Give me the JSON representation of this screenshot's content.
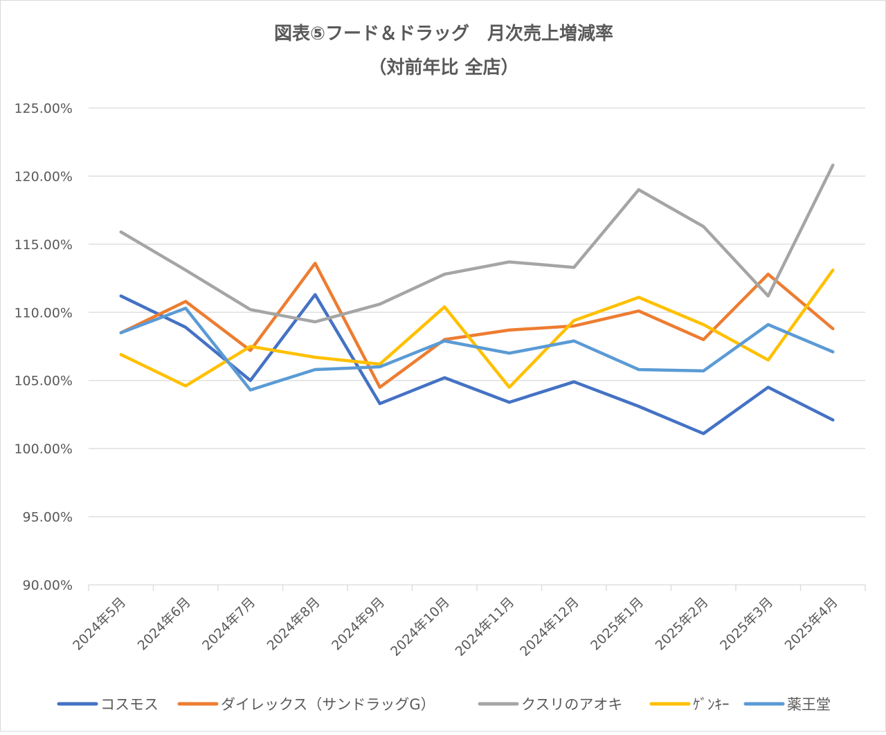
{
  "chart_data": {
    "type": "line",
    "title": "図表⑤フード＆ドラッグ　月次売上増減率",
    "subtitle": "（対前年比 全店）",
    "xlabel": "",
    "ylabel": "",
    "ylim": [
      90,
      125
    ],
    "yticks": [
      "90.00%",
      "95.00%",
      "100.00%",
      "105.00%",
      "110.00%",
      "115.00%",
      "120.00%",
      "125.00%"
    ],
    "grid": true,
    "legend_position": "bottom",
    "categories": [
      "2024年5月",
      "2024年6月",
      "2024年7月",
      "2024年8月",
      "2024年9月",
      "2024年10月",
      "2024年11月",
      "2024年12月",
      "2025年1月",
      "2025年2月",
      "2025年3月",
      "2025年4月"
    ],
    "series": [
      {
        "name": "コスモス",
        "color": "#4472C4",
        "values": [
          111.2,
          108.9,
          105.0,
          111.3,
          103.3,
          105.2,
          103.4,
          104.9,
          103.1,
          101.1,
          104.5,
          102.1
        ]
      },
      {
        "name": "ダイレックス（サンドラッグG）",
        "color": "#ED7D31",
        "values": [
          108.5,
          110.8,
          107.2,
          113.6,
          104.5,
          108.0,
          108.7,
          109.0,
          110.1,
          108.0,
          112.8,
          108.8
        ]
      },
      {
        "name": "クスリのアオキ",
        "color": "#A5A5A5",
        "values": [
          115.9,
          113.1,
          110.2,
          109.3,
          110.6,
          112.8,
          113.7,
          113.3,
          119.0,
          116.3,
          111.2,
          120.8
        ]
      },
      {
        "name": "ｹﾞﾝｷｰ",
        "color": "#FFC000",
        "values": [
          106.9,
          104.6,
          107.5,
          106.7,
          106.2,
          110.4,
          104.5,
          109.4,
          111.1,
          109.1,
          106.5,
          113.1
        ]
      },
      {
        "name": "薬王堂",
        "color": "#5B9BD5",
        "values": [
          108.5,
          110.3,
          104.3,
          105.8,
          106.0,
          107.9,
          107.0,
          107.9,
          105.8,
          105.7,
          109.1,
          107.1
        ]
      }
    ]
  }
}
